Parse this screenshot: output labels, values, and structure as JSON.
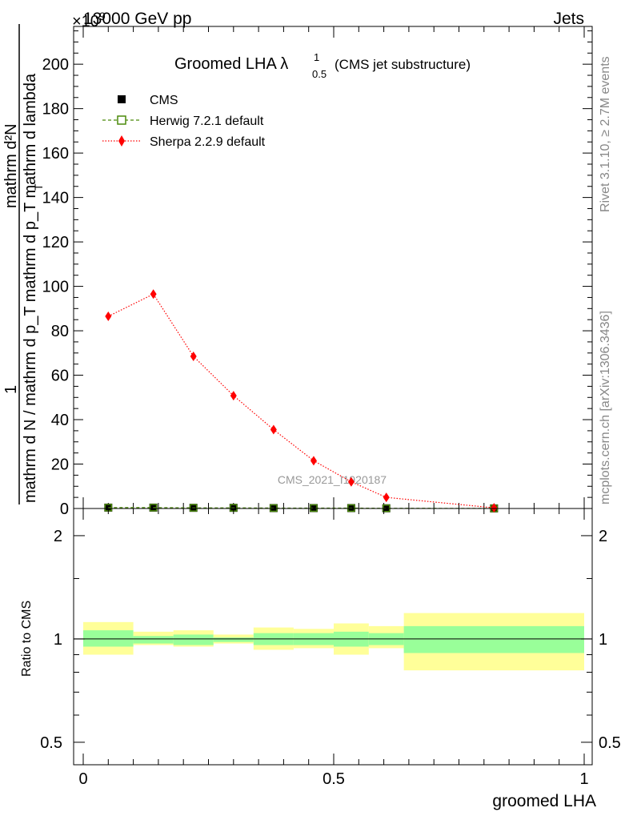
{
  "header": {
    "left": "13000 GeV pp",
    "right": "Jets",
    "exponent_label": "×10^9"
  },
  "side_text": {
    "rivet": "Rivet 3.1.10, ≥ 2.7M events",
    "mcplots": "mcplots.cern.ch [arXiv:1306.3436]"
  },
  "watermark": "CMS_2021_I1920187",
  "chart_data": [
    {
      "type": "line",
      "title": "Groomed LHA λ",
      "title_superscript": "1",
      "title_subscript": "0.5",
      "title_suffix": "(CMS jet substructure)",
      "ylabel_numerator": "mathrm d²N",
      "ylabel_denominator": "mathrm d N / mathrm d p_T mathrm d p_T mathrm d lambda",
      "ylabel_one": "1",
      "xlim": [
        0,
        1
      ],
      "ylim": [
        0,
        217
      ],
      "yticks": [
        0,
        20,
        40,
        60,
        80,
        100,
        120,
        140,
        160,
        180,
        200
      ],
      "grid": false,
      "legend_position": "top-left",
      "series": [
        {
          "name": "CMS",
          "marker": "square",
          "color": "#000000",
          "x": [
            0.05,
            0.14,
            0.22,
            0.3,
            0.38,
            0.46,
            0.535,
            0.605,
            0.82
          ],
          "y": [
            0.4,
            0.4,
            0.3,
            0.3,
            0.2,
            0.2,
            0.2,
            0.1,
            0.05
          ]
        },
        {
          "name": "Herwig 7.2.1 default",
          "marker": "open-square",
          "color": "#4b8a0a",
          "x": [
            0.05,
            0.14,
            0.22,
            0.3,
            0.38,
            0.46,
            0.535,
            0.605,
            0.82
          ],
          "y": [
            0.4,
            0.4,
            0.3,
            0.3,
            0.2,
            0.2,
            0.2,
            0.1,
            0.05
          ]
        },
        {
          "name": "Sherpa 2.2.9 default",
          "marker": "diamond",
          "color": "#ff0000",
          "x": [
            0.05,
            0.14,
            0.22,
            0.3,
            0.38,
            0.46,
            0.535,
            0.605,
            0.82
          ],
          "y": [
            86.5,
            96.5,
            68.5,
            50.8,
            35.5,
            21.5,
            12,
            5,
            0.3
          ]
        }
      ]
    },
    {
      "type": "area",
      "ylabel": "Ratio to CMS",
      "xlabel": "groomed LHA",
      "xlim": [
        0,
        1
      ],
      "ylim": [
        0.43,
        2.4
      ],
      "yscale": "log",
      "yticks": [
        0.5,
        1,
        2
      ],
      "ytick_labels": [
        "0.5",
        "1",
        "2"
      ],
      "xticks": [
        0,
        0.5,
        1
      ],
      "xtick_labels": [
        "0",
        "0.5",
        "1"
      ],
      "reference_line": 1,
      "bins": [
        {
          "x0": 0.0,
          "x1": 0.1,
          "inner": [
            0.95,
            1.06
          ],
          "outer": [
            0.9,
            1.12
          ]
        },
        {
          "x0": 0.1,
          "x1": 0.18,
          "inner": [
            0.97,
            1.02
          ],
          "outer": [
            0.96,
            1.05
          ]
        },
        {
          "x0": 0.18,
          "x1": 0.26,
          "inner": [
            0.96,
            1.03
          ],
          "outer": [
            0.95,
            1.06
          ]
        },
        {
          "x0": 0.26,
          "x1": 0.34,
          "inner": [
            0.98,
            1.01
          ],
          "outer": [
            0.97,
            1.03
          ]
        },
        {
          "x0": 0.34,
          "x1": 0.42,
          "inner": [
            0.96,
            1.04
          ],
          "outer": [
            0.93,
            1.08
          ]
        },
        {
          "x0": 0.42,
          "x1": 0.5,
          "inner": [
            0.96,
            1.04
          ],
          "outer": [
            0.94,
            1.07
          ]
        },
        {
          "x0": 0.5,
          "x1": 0.57,
          "inner": [
            0.95,
            1.05
          ],
          "outer": [
            0.9,
            1.11
          ]
        },
        {
          "x0": 0.57,
          "x1": 0.64,
          "inner": [
            0.96,
            1.04
          ],
          "outer": [
            0.94,
            1.09
          ]
        },
        {
          "x0": 0.64,
          "x1": 1.0,
          "inner": [
            0.91,
            1.09
          ],
          "outer": [
            0.81,
            1.19
          ]
        }
      ],
      "colors": {
        "inner": "#99ff99",
        "outer": "#ffff99"
      }
    }
  ]
}
